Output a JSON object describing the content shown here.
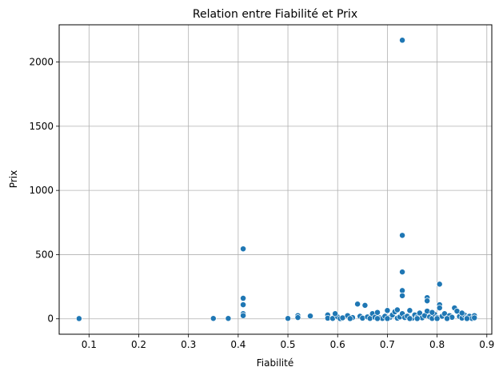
{
  "chart_data": {
    "type": "scatter",
    "title": "Relation entre Fiabilité et Prix",
    "xlabel": "Fiabilité",
    "ylabel": "Prix",
    "xlim": [
      0.04,
      0.91
    ],
    "ylim": [
      -120,
      2290
    ],
    "xticks": [
      0.1,
      0.2,
      0.3,
      0.4,
      0.5,
      0.6,
      0.7,
      0.8,
      0.9
    ],
    "xtick_labels": [
      "0.1",
      "0.2",
      "0.3",
      "0.4",
      "0.5",
      "0.6",
      "0.7",
      "0.8",
      "0.9"
    ],
    "yticks": [
      0,
      500,
      1000,
      1500,
      2000
    ],
    "ytick_labels": [
      "0",
      "500",
      "1000",
      "1500",
      "2000"
    ],
    "grid": true,
    "marker_color": "#1f77b4",
    "marker_edge_color": "#ffffff",
    "series": [
      {
        "points": [
          [
            0.08,
            2
          ],
          [
            0.35,
            3
          ],
          [
            0.38,
            3
          ],
          [
            0.41,
            545
          ],
          [
            0.41,
            160
          ],
          [
            0.41,
            110
          ],
          [
            0.41,
            40
          ],
          [
            0.41,
            25
          ],
          [
            0.5,
            3
          ],
          [
            0.52,
            25
          ],
          [
            0.52,
            10
          ],
          [
            0.545,
            22
          ],
          [
            0.58,
            30
          ],
          [
            0.58,
            5
          ],
          [
            0.59,
            3
          ],
          [
            0.6,
            15
          ],
          [
            0.605,
            2
          ],
          [
            0.61,
            8
          ],
          [
            0.62,
            25
          ],
          [
            0.63,
            10
          ],
          [
            0.64,
            115
          ],
          [
            0.645,
            20
          ],
          [
            0.65,
            5
          ],
          [
            0.655,
            105
          ],
          [
            0.66,
            15
          ],
          [
            0.665,
            3
          ],
          [
            0.67,
            40
          ],
          [
            0.675,
            12
          ],
          [
            0.68,
            50
          ],
          [
            0.685,
            8
          ],
          [
            0.69,
            3
          ],
          [
            0.695,
            20
          ],
          [
            0.7,
            65
          ],
          [
            0.705,
            10
          ],
          [
            0.71,
            30
          ],
          [
            0.715,
            55
          ],
          [
            0.72,
            5
          ],
          [
            0.725,
            15
          ],
          [
            0.73,
            2170
          ],
          [
            0.73,
            650
          ],
          [
            0.73,
            365
          ],
          [
            0.73,
            220
          ],
          [
            0.73,
            180
          ],
          [
            0.73,
            40
          ],
          [
            0.735,
            10
          ],
          [
            0.74,
            20
          ],
          [
            0.745,
            65
          ],
          [
            0.75,
            5
          ],
          [
            0.755,
            30
          ],
          [
            0.76,
            12
          ],
          [
            0.765,
            45
          ],
          [
            0.77,
            8
          ],
          [
            0.775,
            25
          ],
          [
            0.78,
            165
          ],
          [
            0.78,
            140
          ],
          [
            0.78,
            60
          ],
          [
            0.785,
            15
          ],
          [
            0.79,
            3
          ],
          [
            0.795,
            35
          ],
          [
            0.8,
            10
          ],
          [
            0.805,
            270
          ],
          [
            0.805,
            110
          ],
          [
            0.805,
            85
          ],
          [
            0.81,
            20
          ],
          [
            0.815,
            40
          ],
          [
            0.82,
            5
          ],
          [
            0.825,
            25
          ],
          [
            0.83,
            12
          ],
          [
            0.835,
            85
          ],
          [
            0.84,
            60
          ],
          [
            0.845,
            18
          ],
          [
            0.85,
            6
          ],
          [
            0.855,
            30
          ],
          [
            0.86,
            10
          ],
          [
            0.865,
            20
          ],
          [
            0.87,
            3
          ],
          [
            0.875,
            25
          ],
          [
            0.875,
            8
          ],
          [
            0.595,
            40
          ],
          [
            0.625,
            2
          ],
          [
            0.68,
            2
          ],
          [
            0.72,
            70
          ],
          [
            0.76,
            2
          ],
          [
            0.79,
            50
          ],
          [
            0.82,
            2
          ],
          [
            0.85,
            45
          ],
          [
            0.86,
            2
          ],
          [
            0.7,
            2
          ],
          [
            0.745,
            2
          ],
          [
            0.8,
            2
          ]
        ]
      }
    ]
  }
}
